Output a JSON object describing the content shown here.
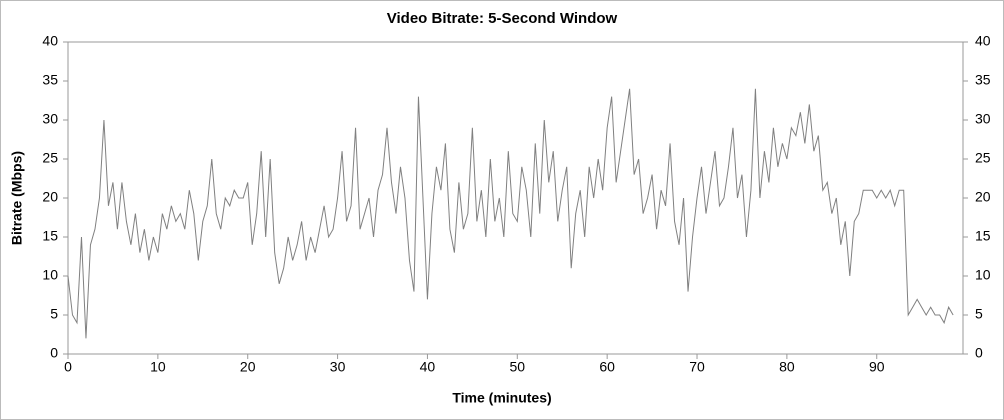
{
  "chart_data": {
    "type": "line",
    "title": "Video Bitrate: 5-Second Window",
    "x_label": "Time (minutes)",
    "y_label": "Bitrate (Mbps)",
    "color": "#808080",
    "x": [
      0,
      0.5,
      1,
      1.5,
      2,
      2.5,
      3,
      3.5,
      4,
      4.5,
      5,
      5.5,
      6,
      6.5,
      7,
      7.5,
      8,
      8.5,
      9,
      9.5,
      10,
      10.5,
      11,
      11.5,
      12,
      12.5,
      13,
      13.5,
      14,
      14.5,
      15,
      15.5,
      16,
      16.5,
      17,
      17.5,
      18,
      18.5,
      19,
      19.5,
      20,
      20.5,
      21,
      21.5,
      22,
      22.5,
      23,
      23.5,
      24,
      24.5,
      25,
      25.5,
      26,
      26.5,
      27,
      27.5,
      28,
      28.5,
      29,
      29.5,
      30,
      30.5,
      31,
      31.5,
      32,
      32.5,
      33,
      33.5,
      34,
      34.5,
      35,
      35.5,
      36,
      36.5,
      37,
      37.5,
      38,
      38.5,
      39,
      39.5,
      40,
      40.5,
      41,
      41.5,
      42,
      42.5,
      43,
      43.5,
      44,
      44.5,
      45,
      45.5,
      46,
      46.5,
      47,
      47.5,
      48,
      48.5,
      49,
      49.5,
      50,
      50.5,
      51,
      51.5,
      52,
      52.5,
      53,
      53.5,
      54,
      54.5,
      55,
      55.5,
      56,
      56.5,
      57,
      57.5,
      58,
      58.5,
      59,
      59.5,
      60,
      60.5,
      61,
      61.5,
      62,
      62.5,
      63,
      63.5,
      64,
      64.5,
      65,
      65.5,
      66,
      66.5,
      67,
      67.5,
      68,
      68.5,
      69,
      69.5,
      70,
      70.5,
      71,
      71.5,
      72,
      72.5,
      73,
      73.5,
      74,
      74.5,
      75,
      75.5,
      76,
      76.5,
      77,
      77.5,
      78,
      78.5,
      79,
      79.5,
      80,
      80.5,
      81,
      81.5,
      82,
      82.5,
      83,
      83.5,
      84,
      84.5,
      85,
      85.5,
      86,
      86.5,
      87,
      87.5,
      88,
      88.5,
      89,
      89.5,
      90,
      90.5,
      91,
      91.5,
      92,
      92.5,
      93,
      93.5,
      94,
      94.5,
      95,
      95.5,
      96,
      96.5,
      97,
      97.5,
      98,
      98.5
    ],
    "values": [
      10,
      5,
      4,
      15,
      2,
      14,
      16,
      20,
      30,
      19,
      22,
      16,
      22,
      17,
      14,
      18,
      13,
      16,
      12,
      15,
      13,
      18,
      16,
      19,
      17,
      18,
      16,
      21,
      18,
      12,
      17,
      19,
      25,
      18,
      16,
      20,
      19,
      21,
      20,
      20,
      22,
      14,
      18,
      26,
      15,
      25,
      13,
      9,
      11,
      15,
      12,
      14,
      17,
      12,
      15,
      13,
      16,
      19,
      15,
      16,
      20,
      26,
      17,
      19,
      29,
      16,
      18,
      20,
      15,
      21,
      23,
      29,
      22,
      18,
      24,
      20,
      12,
      8,
      33,
      20,
      7,
      18,
      24,
      21,
      27,
      16,
      13,
      22,
      16,
      18,
      29,
      17,
      21,
      15,
      25,
      17,
      20,
      15,
      26,
      18,
      17,
      24,
      21,
      15,
      27,
      18,
      30,
      22,
      26,
      17,
      21,
      24,
      11,
      18,
      21,
      15,
      24,
      20,
      25,
      21,
      29,
      33,
      22,
      26,
      30,
      34,
      23,
      25,
      18,
      20,
      23,
      16,
      21,
      19,
      27,
      17,
      14,
      20,
      8,
      15,
      20,
      24,
      18,
      22,
      26,
      19,
      20,
      24,
      29,
      20,
      23,
      15,
      21,
      34,
      20,
      26,
      22,
      29,
      24,
      27,
      25,
      29,
      28,
      31,
      27,
      32,
      26,
      28,
      21,
      22,
      18,
      20,
      14,
      17,
      10,
      17,
      18,
      21,
      21,
      21,
      20,
      21,
      20,
      21,
      19,
      21,
      21,
      5,
      6,
      7,
      6,
      5,
      6,
      5,
      5,
      4,
      6,
      5
    ],
    "xlim": [
      0,
      99.6
    ],
    "xticks": [
      0,
      10,
      20,
      30,
      40,
      50,
      60,
      70,
      80,
      90
    ],
    "ylim": [
      0,
      40
    ],
    "yticks": [
      0,
      5,
      10,
      15,
      20,
      25,
      30,
      35,
      40
    ],
    "y2lim": [
      0,
      40
    ],
    "y2ticks": [
      0,
      5,
      10,
      15,
      20,
      25,
      30,
      35,
      40
    ]
  }
}
